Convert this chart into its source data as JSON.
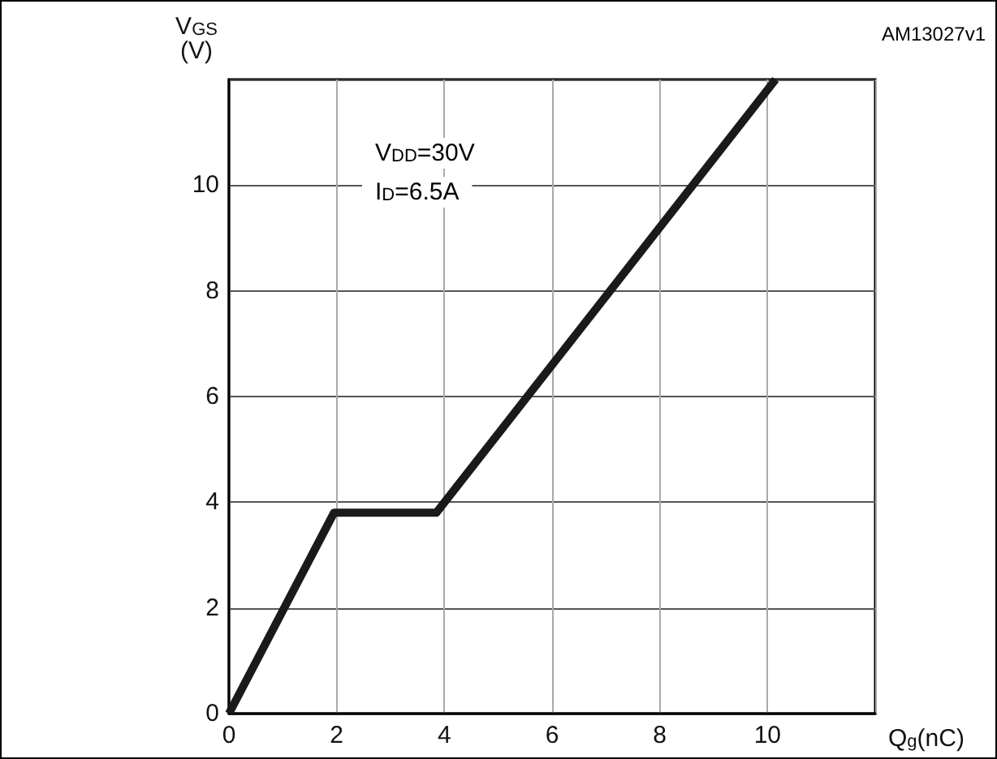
{
  "chart_data": {
    "type": "line",
    "xlabel": "Q$_{g}$(nC)",
    "ylabel": "V$_{GS}$\n(V)",
    "annotations": [
      "V$_{DD}$=30V",
      "I$_{D}$=6.5A",
      "AM13027v1"
    ],
    "x": [
      0,
      1.95,
      3.85,
      10.15
    ],
    "series": [
      {
        "color": "#1a1a1a",
        "values": [
          0,
          3.8,
          3.8,
          12
        ]
      }
    ],
    "xlim": [
      0,
      12
    ],
    "xticks": [
      0,
      2,
      4,
      6,
      8,
      10,
      {
        "value": 12,
        "label": null
      }
    ],
    "ylim": [
      0,
      12
    ],
    "yticks": [
      0,
      2,
      4,
      6,
      8,
      10,
      {
        "value": 12,
        "label": null
      }
    ],
    "grid": true
  }
}
